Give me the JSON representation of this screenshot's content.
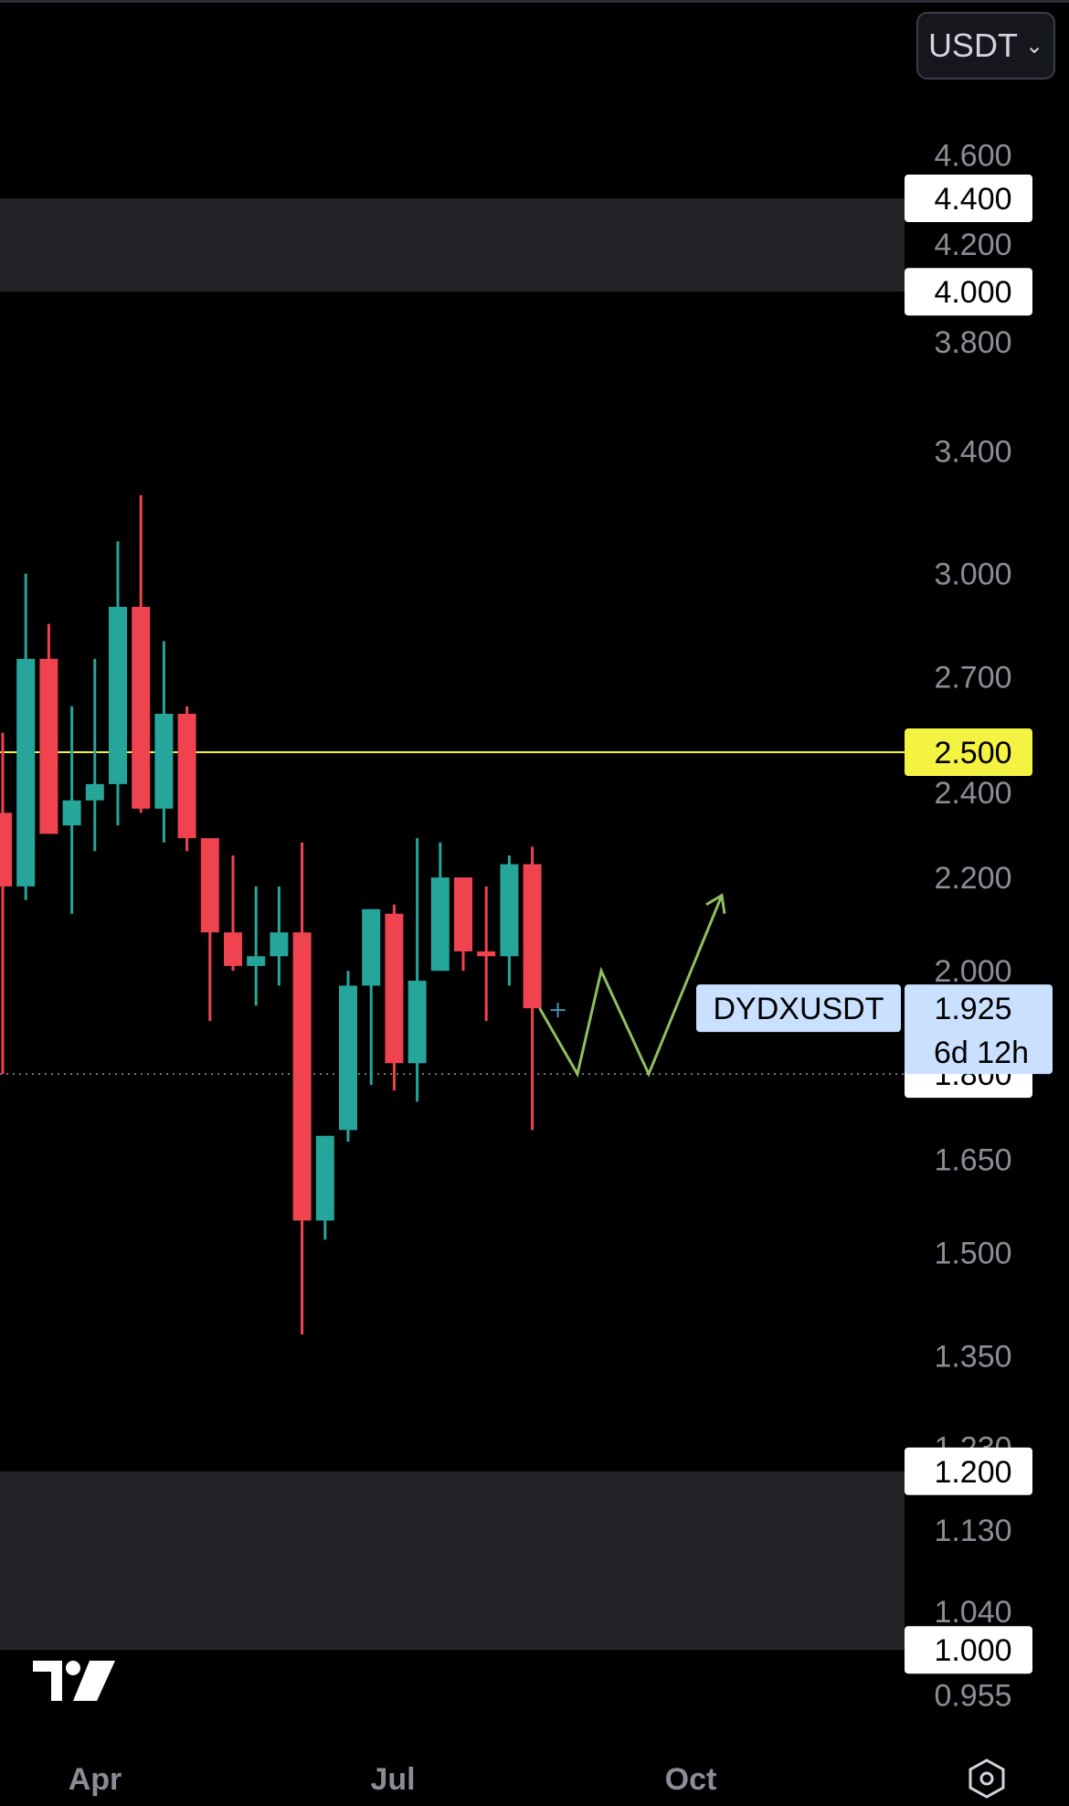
{
  "header": {
    "currency": "USDT"
  },
  "price_axis": {
    "ticks": [
      "4.600",
      "4.400",
      "4.200",
      "4.000",
      "3.800",
      "3.400",
      "3.000",
      "2.700",
      "2.500",
      "2.400",
      "2.200",
      "2.000",
      "1.800",
      "1.650",
      "1.500",
      "1.350",
      "1.230",
      "1.200",
      "1.130",
      "1.040",
      "1.000",
      "0.955"
    ],
    "highlighted": [
      "4.400",
      "4.000",
      "1.800",
      "1.200",
      "1.000"
    ],
    "level_badge": "2.500"
  },
  "time_axis": {
    "labels": [
      "Apr",
      "Jul",
      "Oct"
    ]
  },
  "symbol_label": {
    "symbol": "DYDXUSDT",
    "price": "1.925",
    "countdown": "6d 12h"
  },
  "colors": {
    "up": "#26a69a",
    "down": "#ef4350",
    "level": "#f5f342",
    "projection": "#8fbf5f",
    "zone": "#232427",
    "price_badge": "#c9e1ff"
  },
  "icons": {
    "logo": "tradingview-logo-icon",
    "settings": "settings-hexagon-icon"
  },
  "chart_data": {
    "type": "candlestick",
    "scale": "log",
    "ylim": [
      0.93,
      4.75
    ],
    "xlabels": [
      "Apr",
      "Jul",
      "Oct"
    ],
    "candles": [
      {
        "o": 2.35,
        "h": 2.55,
        "l": 1.8,
        "c": 2.18
      },
      {
        "o": 2.18,
        "h": 3.0,
        "l": 2.15,
        "c": 2.75
      },
      {
        "o": 2.75,
        "h": 2.85,
        "l": 2.3,
        "c": 2.3
      },
      {
        "o": 2.32,
        "h": 2.62,
        "l": 2.12,
        "c": 2.38
      },
      {
        "o": 2.38,
        "h": 2.75,
        "l": 2.26,
        "c": 2.42
      },
      {
        "o": 2.42,
        "h": 3.1,
        "l": 2.32,
        "c": 2.9
      },
      {
        "o": 2.9,
        "h": 3.25,
        "l": 2.35,
        "c": 2.36
      },
      {
        "o": 2.36,
        "h": 2.8,
        "l": 2.28,
        "c": 2.6
      },
      {
        "o": 2.6,
        "h": 2.62,
        "l": 2.26,
        "c": 2.29
      },
      {
        "o": 2.29,
        "h": 2.29,
        "l": 1.9,
        "c": 2.08
      },
      {
        "o": 2.08,
        "h": 2.25,
        "l": 2.0,
        "c": 2.01
      },
      {
        "o": 2.01,
        "h": 2.18,
        "l": 1.93,
        "c": 2.03
      },
      {
        "o": 2.03,
        "h": 2.18,
        "l": 1.97,
        "c": 2.08
      },
      {
        "o": 2.08,
        "h": 2.28,
        "l": 1.38,
        "c": 1.55
      },
      {
        "o": 1.55,
        "h": 1.69,
        "l": 1.52,
        "c": 1.69
      },
      {
        "o": 1.7,
        "h": 2.0,
        "l": 1.68,
        "c": 1.97
      },
      {
        "o": 1.97,
        "h": 2.13,
        "l": 1.78,
        "c": 2.13
      },
      {
        "o": 2.12,
        "h": 2.14,
        "l": 1.77,
        "c": 1.82
      },
      {
        "o": 1.82,
        "h": 2.29,
        "l": 1.75,
        "c": 1.98
      },
      {
        "o": 2.0,
        "h": 2.28,
        "l": 2.0,
        "c": 2.2
      },
      {
        "o": 2.2,
        "h": 2.2,
        "l": 2.0,
        "c": 2.04
      },
      {
        "o": 2.04,
        "h": 2.18,
        "l": 1.9,
        "c": 2.03
      },
      {
        "o": 2.03,
        "h": 2.25,
        "l": 1.97,
        "c": 2.23
      },
      {
        "o": 2.23,
        "h": 2.27,
        "l": 1.7,
        "c": 1.925
      }
    ],
    "level": 2.5,
    "current_price": 1.925,
    "zones": [
      [
        4.0,
        4.4
      ],
      [
        1.0,
        1.2
      ]
    ],
    "projection": [
      1.925,
      1.8,
      2.0,
      1.8,
      2.16
    ]
  }
}
